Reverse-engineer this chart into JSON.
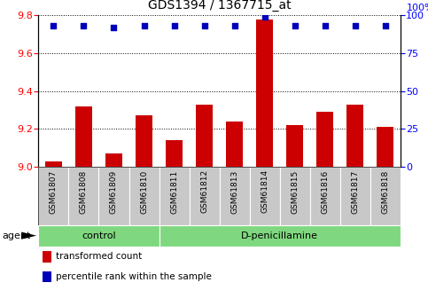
{
  "title": "GDS1394 / 1367715_at",
  "samples": [
    "GSM61807",
    "GSM61808",
    "GSM61809",
    "GSM61810",
    "GSM61811",
    "GSM61812",
    "GSM61813",
    "GSM61814",
    "GSM61815",
    "GSM61816",
    "GSM61817",
    "GSM61818"
  ],
  "red_values": [
    9.03,
    9.32,
    9.07,
    9.27,
    9.14,
    9.33,
    9.24,
    9.78,
    9.22,
    9.29,
    9.33,
    9.21
  ],
  "blue_values": [
    93,
    93,
    92,
    93,
    93,
    93,
    93,
    99,
    93,
    93,
    93,
    93
  ],
  "ylim_left": [
    9.0,
    9.8
  ],
  "ylim_right": [
    0,
    100
  ],
  "yticks_left": [
    9.0,
    9.2,
    9.4,
    9.6,
    9.8
  ],
  "yticks_right": [
    0,
    25,
    50,
    75,
    100
  ],
  "control_samples": 4,
  "group_labels": [
    "control",
    "D-penicillamine"
  ],
  "bar_color": "#CC0000",
  "dot_color": "#0000BB",
  "legend_red": "transformed count",
  "legend_blue": "percentile rank within the sample",
  "agent_label": "agent",
  "green_color": "#7FD87F",
  "gray_color": "#C8C8C8"
}
